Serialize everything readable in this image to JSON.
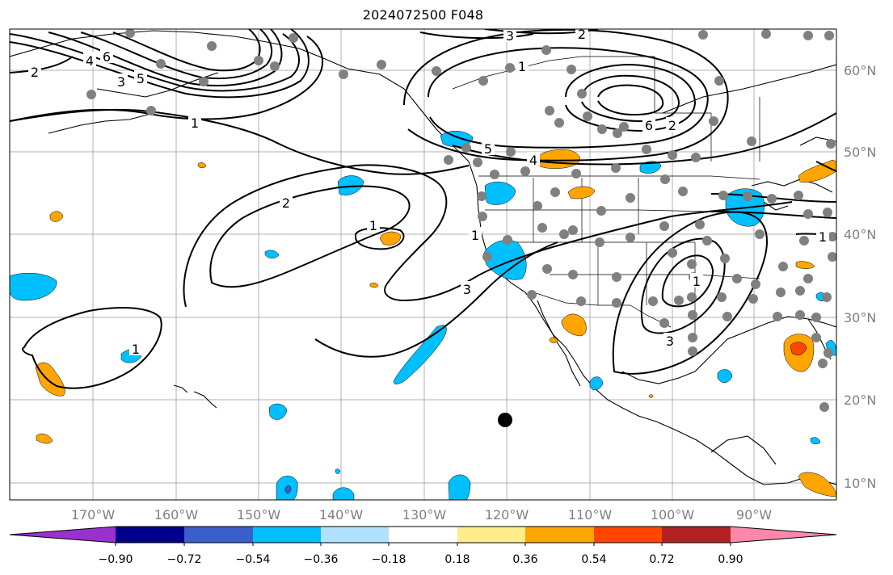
{
  "title": "2024072500 F048",
  "map": {
    "lon_ticks": [
      "170°W",
      "160°W",
      "150°W",
      "140°W",
      "130°W",
      "120°W",
      "110°W",
      "100°W",
      "90°W"
    ],
    "lat_ticks": [
      "10°N",
      "20°N",
      "30°N",
      "40°N",
      "50°N",
      "60°N"
    ],
    "colors": {
      "negative_strong": "#00bfff",
      "negative_core": "#3a5fcd",
      "positive": "#ffa500",
      "positive_core": "#ff4500",
      "contour": "#000000",
      "station": "#808080",
      "marker": "#000000",
      "grid": "#b0b0b0"
    },
    "contour_labels": [
      "2",
      "4",
      "6",
      "3",
      "5",
      "1",
      "3",
      "2",
      "1",
      "5",
      "6",
      "4",
      "2",
      "1",
      "1",
      "3",
      "1",
      "3",
      "1",
      "1",
      "2"
    ]
  },
  "colorbar": {
    "tick_labels": [
      "−0.90",
      "−0.72",
      "−0.54",
      "−0.36",
      "−0.18",
      "0.18",
      "0.36",
      "0.54",
      "0.72",
      "0.90"
    ],
    "colors": [
      "#9932cc",
      "#00008b",
      "#3a5fcd",
      "#00bfff",
      "#b0e2ff",
      "#ffffff",
      "#ffec8b",
      "#ffa500",
      "#ff4500",
      "#b22222",
      "#ff88aa"
    ]
  }
}
